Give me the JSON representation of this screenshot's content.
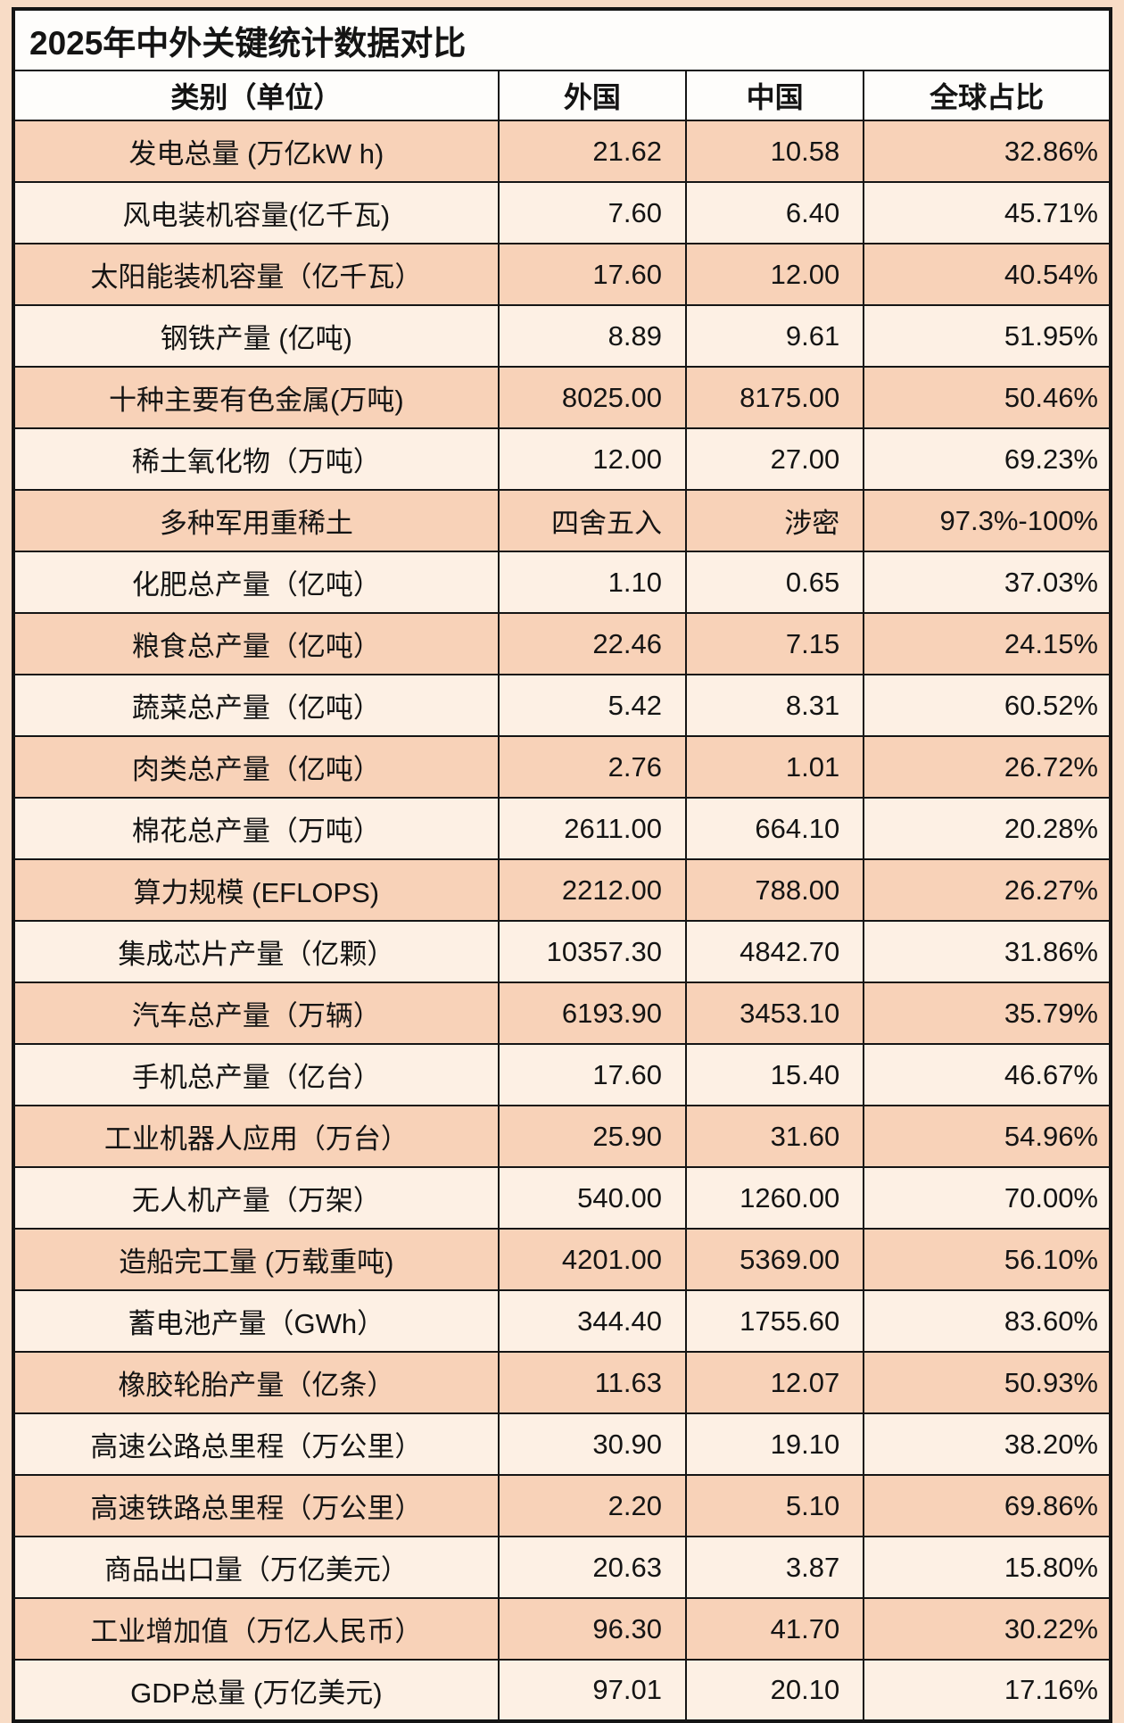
{
  "colors": {
    "row_odd": "#f8d2b8",
    "row_even": "#fdf0e4",
    "header_bg": "#fefdfb",
    "page_bg": "#f8dcc6",
    "border": "#151515",
    "text": "#141414"
  },
  "chart_data": {
    "type": "table",
    "title": "2025年中外关键统计数据对比",
    "columns": [
      "类别（单位）",
      "外国",
      "中国",
      "全球占比"
    ],
    "rows": [
      [
        "发电总量 (万亿kW h)",
        "21.62",
        "10.58",
        "32.86%"
      ],
      [
        "风电装机容量(亿千瓦)",
        "7.60",
        "6.40",
        "45.71%"
      ],
      [
        "太阳能装机容量（亿千瓦）",
        "17.60",
        "12.00",
        "40.54%"
      ],
      [
        "钢铁产量 (亿吨)",
        "8.89",
        "9.61",
        "51.95%"
      ],
      [
        "十种主要有色金属(万吨)",
        "8025.00",
        "8175.00",
        "50.46%"
      ],
      [
        "稀土氧化物（万吨）",
        "12.00",
        "27.00",
        "69.23%"
      ],
      [
        "多种军用重稀土",
        "四舍五入",
        "涉密",
        "97.3%-100%"
      ],
      [
        "化肥总产量（亿吨）",
        "1.10",
        "0.65",
        "37.03%"
      ],
      [
        "粮食总产量（亿吨）",
        "22.46",
        "7.15",
        "24.15%"
      ],
      [
        "蔬菜总产量（亿吨）",
        "5.42",
        "8.31",
        "60.52%"
      ],
      [
        "肉类总产量（亿吨）",
        "2.76",
        "1.01",
        "26.72%"
      ],
      [
        "棉花总产量（万吨）",
        "2611.00",
        "664.10",
        "20.28%"
      ],
      [
        "算力规模 (EFLOPS)",
        "2212.00",
        "788.00",
        "26.27%"
      ],
      [
        "集成芯片产量（亿颗）",
        "10357.30",
        "4842.70",
        "31.86%"
      ],
      [
        "汽车总产量（万辆）",
        "6193.90",
        "3453.10",
        "35.79%"
      ],
      [
        "手机总产量（亿台）",
        "17.60",
        "15.40",
        "46.67%"
      ],
      [
        "工业机器人应用（万台）",
        "25.90",
        "31.60",
        "54.96%"
      ],
      [
        "无人机产量（万架）",
        "540.00",
        "1260.00",
        "70.00%"
      ],
      [
        "造船完工量 (万载重吨)",
        "4201.00",
        "5369.00",
        "56.10%"
      ],
      [
        "蓄电池产量（GWh）",
        "344.40",
        "1755.60",
        "83.60%"
      ],
      [
        "橡胶轮胎产量（亿条）",
        "11.63",
        "12.07",
        "50.93%"
      ],
      [
        "高速公路总里程（万公里）",
        "30.90",
        "19.10",
        "38.20%"
      ],
      [
        "高速铁路总里程（万公里）",
        "2.20",
        "5.10",
        "69.86%"
      ],
      [
        "商品出口量（万亿美元）",
        "20.63",
        "3.87",
        "15.80%"
      ],
      [
        "工业增加值（万亿人民币）",
        "96.30",
        "41.70",
        "30.22%"
      ],
      [
        "GDP总量 (万亿美元)",
        "97.01",
        "20.10",
        "17.16%"
      ]
    ]
  }
}
